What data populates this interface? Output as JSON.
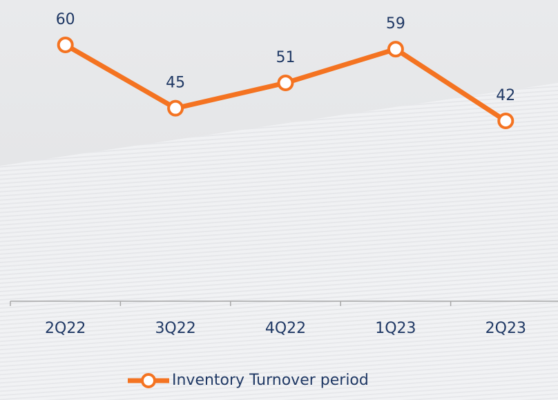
{
  "chart_data": {
    "type": "line",
    "categories": [
      "2Q22",
      "3Q22",
      "4Q22",
      "1Q23",
      "2Q23"
    ],
    "series": [
      {
        "name": "Inventory Turnover period",
        "color": "#f47321",
        "values": [
          60,
          45,
          51,
          59,
          42
        ]
      }
    ]
  }
}
